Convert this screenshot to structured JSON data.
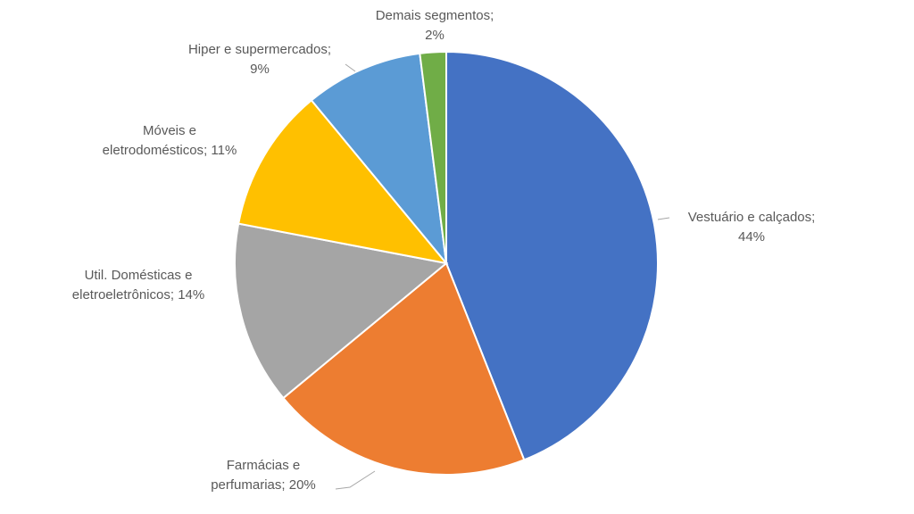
{
  "chart_data": {
    "type": "pie",
    "categories": [
      "Vestuário e calçados",
      "Farmácias e perfumarias",
      "Util. Domésticas e eletroeletrônicos",
      "Móveis e eletrodomésticos",
      "Hiper e supermercados",
      "Demais segmentos"
    ],
    "values": [
      44,
      20,
      14,
      11,
      9,
      2
    ],
    "value_labels": [
      "44%",
      "20%",
      "14%",
      "11%",
      "9%",
      "2%"
    ],
    "colors": [
      "#4472c4",
      "#ed7d31",
      "#a5a5a5",
      "#ffc000",
      "#5b9bd5",
      "#70ad47"
    ],
    "label_separator": ";"
  }
}
